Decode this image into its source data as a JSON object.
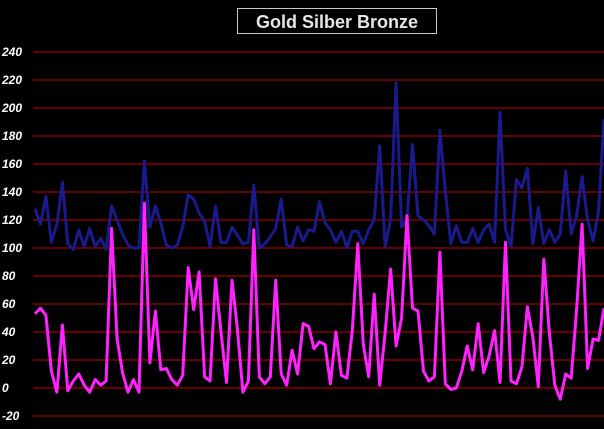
{
  "chart_data": {
    "type": "line",
    "title": "Gold Silber Bronze",
    "xlabel": "",
    "ylabel": "",
    "ylim": [
      -20,
      240
    ],
    "yticks": [
      -20,
      0,
      20,
      40,
      60,
      80,
      100,
      120,
      140,
      160,
      180,
      200,
      220,
      240
    ],
    "grid": true,
    "legend": "none",
    "background_color": "#000000",
    "grid_color": "#cc0000",
    "tick_label_color": "#ffffff",
    "series": [
      {
        "color": "#1a1a8c",
        "values": [
          128,
          117,
          137,
          104,
          117,
          147,
          103,
          99,
          113,
          101,
          114,
          101,
          107,
          99,
          130,
          120,
          110,
          102,
          100,
          100,
          162,
          115,
          130,
          118,
          102,
          100,
          102,
          115,
          138,
          135,
          125,
          119,
          101,
          130,
          104,
          104,
          115,
          109,
          103,
          104,
          145,
          100,
          103,
          108,
          114,
          135,
          102,
          101,
          115,
          105,
          113,
          112,
          133,
          118,
          113,
          104,
          112,
          100,
          112,
          112,
          103,
          113,
          120,
          173,
          101,
          120,
          218,
          115,
          121,
          174,
          123,
          120,
          116,
          110,
          184,
          141,
          103,
          116,
          104,
          104,
          114,
          104,
          113,
          117,
          104,
          197,
          113,
          101,
          149,
          143,
          157,
          103,
          129,
          103,
          113,
          104,
          110,
          155,
          110,
          123,
          151,
          120,
          105,
          126,
          192
        ]
      },
      {
        "color": "#ff22ff",
        "values": [
          53,
          57,
          52,
          12,
          -3,
          45,
          -2,
          5,
          10,
          2,
          -3,
          6,
          2,
          5,
          114,
          35,
          11,
          -3,
          6,
          -3,
          132,
          18,
          55,
          13,
          14,
          6,
          2,
          9,
          86,
          56,
          83,
          8,
          5,
          78,
          40,
          4,
          77,
          42,
          -3,
          5,
          113,
          8,
          3,
          8,
          77,
          10,
          2,
          27,
          10,
          46,
          44,
          28,
          33,
          31,
          3,
          40,
          9,
          7,
          41,
          103,
          31,
          8,
          67,
          2,
          40,
          85,
          30,
          50,
          123,
          57,
          55,
          12,
          5,
          8,
          97,
          3,
          -1,
          0,
          12,
          30,
          13,
          46,
          11,
          23,
          41,
          4,
          104,
          5,
          3,
          15,
          58,
          36,
          1,
          92,
          40,
          2,
          -8,
          10,
          7,
          56,
          117,
          14,
          35,
          34,
          57
        ]
      }
    ]
  }
}
